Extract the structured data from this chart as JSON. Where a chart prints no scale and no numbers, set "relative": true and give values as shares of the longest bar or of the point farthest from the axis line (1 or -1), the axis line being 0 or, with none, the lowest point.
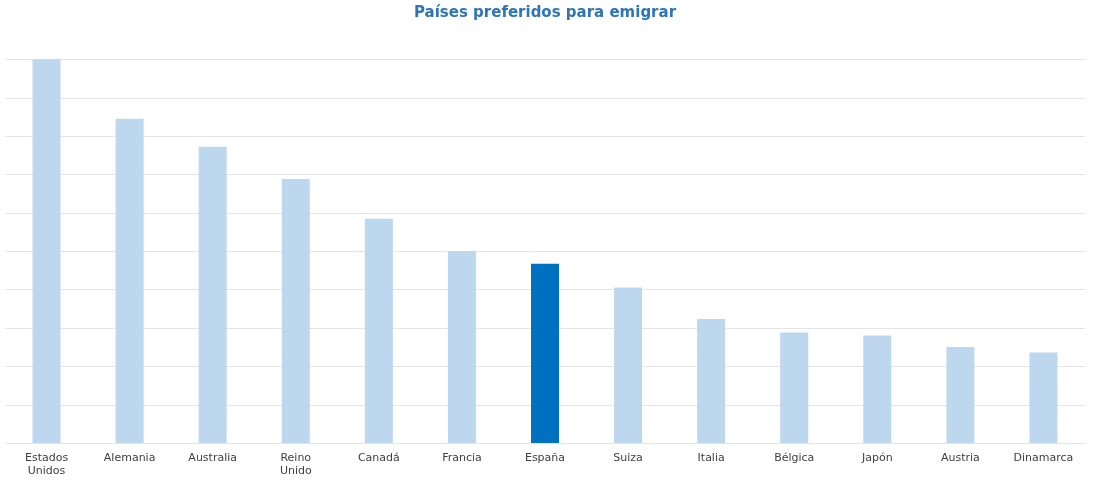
{
  "chart_data": {
    "type": "bar",
    "title": "Países preferidos para emigrar",
    "relative": true,
    "grid": "y",
    "categories": [
      "Estados Unidos",
      "Alemania",
      "Australia",
      "Reino Unido",
      "Canadá",
      "Francia",
      "España",
      "Suiza",
      "Italia",
      "Bélgica",
      "Japón",
      "Austria",
      "Dinamarca"
    ],
    "values": [
      1,
      0.845,
      0.772,
      0.688,
      0.584,
      0.5,
      0.467,
      0.405,
      0.323,
      0.288,
      0.28,
      0.25,
      0.236
    ],
    "colors": [
      "#bdd7ee",
      "#bdd7ee",
      "#bdd7ee",
      "#bdd7ee",
      "#bdd7ee",
      "#bdd7ee",
      "#0070c0",
      "#bdd7ee",
      "#bdd7ee",
      "#bdd7ee",
      "#bdd7ee",
      "#bdd7ee",
      "#bdd7ee"
    ]
  }
}
